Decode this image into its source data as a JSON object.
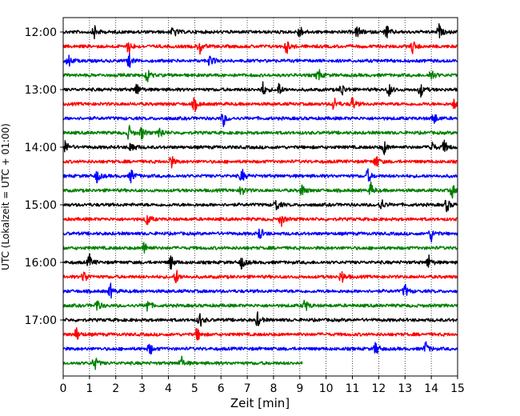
{
  "chart_data": {
    "type": "line",
    "title": "",
    "xlabel": "Zeit  [min]",
    "ylabel": "UTC (Lokalzeit = UTC + 01:00)",
    "xlim": [
      0,
      15
    ],
    "x_ticks": [
      "0",
      "1",
      "2",
      "3",
      "4",
      "5",
      "6",
      "7",
      "8",
      "9",
      "10",
      "11",
      "12",
      "13",
      "14",
      "15"
    ],
    "y_ticks": [
      "12:00",
      "13:00",
      "14:00",
      "15:00",
      "16:00",
      "17:00"
    ],
    "grid": "vertical dotted",
    "trace_interval_min": 15,
    "trace_colors": [
      "#000000",
      "#ff0000",
      "#0000ff",
      "#008000"
    ],
    "traces": [
      {
        "start": "12:00",
        "end_min": 15,
        "events": [
          1.2,
          4.2,
          9.0,
          11.2,
          12.3,
          14.3
        ]
      },
      {
        "start": "12:15",
        "end_min": 15,
        "events": [
          2.5,
          5.2,
          8.5,
          13.3
        ]
      },
      {
        "start": "12:30",
        "end_min": 15,
        "events": [
          0.2,
          2.5,
          5.6
        ]
      },
      {
        "start": "12:45",
        "end_min": 15,
        "events": [
          3.2,
          9.7,
          14.0
        ]
      },
      {
        "start": "13:00",
        "end_min": 15,
        "events": [
          2.8,
          7.6,
          8.2,
          10.6,
          12.4,
          13.6
        ]
      },
      {
        "start": "13:15",
        "end_min": 15,
        "events": [
          5.0,
          10.3,
          11.0,
          14.9
        ]
      },
      {
        "start": "13:30",
        "end_min": 15,
        "events": [
          6.1,
          14.1
        ]
      },
      {
        "start": "13:45",
        "end_min": 15,
        "events": [
          2.5,
          3.0,
          3.7
        ]
      },
      {
        "start": "14:00",
        "end_min": 15,
        "events": [
          0.1,
          2.6,
          12.2,
          14.0,
          14.5
        ]
      },
      {
        "start": "14:15",
        "end_min": 15,
        "events": [
          4.1,
          11.9
        ]
      },
      {
        "start": "14:30",
        "end_min": 15,
        "events": [
          1.3,
          2.6,
          6.8,
          11.6
        ]
      },
      {
        "start": "14:45",
        "end_min": 15,
        "events": [
          6.8,
          9.1,
          11.7,
          14.8
        ]
      },
      {
        "start": "15:00",
        "end_min": 15,
        "events": [
          8.1,
          12.1,
          14.6
        ]
      },
      {
        "start": "15:15",
        "end_min": 15,
        "events": [
          3.2,
          8.3
        ]
      },
      {
        "start": "15:30",
        "end_min": 15,
        "events": [
          7.5,
          14.0
        ]
      },
      {
        "start": "15:45",
        "end_min": 15,
        "events": [
          3.1
        ]
      },
      {
        "start": "16:00",
        "end_min": 15,
        "events": [
          1.0,
          4.1,
          6.8,
          13.9
        ]
      },
      {
        "start": "16:15",
        "end_min": 15,
        "events": [
          0.8,
          4.3,
          10.6
        ]
      },
      {
        "start": "16:30",
        "end_min": 15,
        "events": [
          1.8,
          13.0
        ]
      },
      {
        "start": "16:45",
        "end_min": 15,
        "events": [
          1.3,
          3.2,
          9.2
        ]
      },
      {
        "start": "17:00",
        "end_min": 15,
        "events": [
          5.2,
          7.4
        ]
      },
      {
        "start": "17:15",
        "end_min": 15,
        "events": [
          0.5,
          5.1
        ]
      },
      {
        "start": "17:30",
        "end_min": 15,
        "events": [
          3.3,
          11.9,
          13.8
        ]
      },
      {
        "start": "17:45",
        "end_min": 9.1,
        "events": [
          1.2,
          4.5
        ]
      }
    ]
  }
}
